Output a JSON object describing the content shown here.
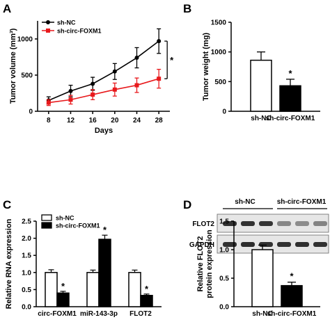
{
  "colors": {
    "series1": "#000000",
    "series2": "#e8191c",
    "bar_open": "#ffffff",
    "bar_filled": "#000000"
  },
  "chart_data": [
    {
      "panel": "A",
      "type": "line",
      "xlabel": "Days",
      "ylabel": "Tumor volume (mm³)",
      "x": [
        8,
        12,
        16,
        20,
        24,
        28
      ],
      "xlim": [
        6,
        30
      ],
      "ylim": [
        0,
        1250
      ],
      "yticks": [
        0,
        500,
        1000
      ],
      "series": [
        {
          "name": "sh-NC",
          "values": [
            150,
            280,
            380,
            550,
            740,
            970
          ],
          "errors": [
            50,
            80,
            90,
            110,
            140,
            170
          ],
          "color": "#000000",
          "marker": "circle"
        },
        {
          "name": "sh-circ-FOXM1",
          "values": [
            120,
            160,
            230,
            300,
            360,
            450
          ],
          "errors": [
            40,
            60,
            70,
            90,
            100,
            130
          ],
          "color": "#e8191c",
          "marker": "square"
        }
      ],
      "annotation": "*",
      "legend": "top-left"
    },
    {
      "panel": "B",
      "type": "bar",
      "ylabel": "Tumor weight (mg)",
      "categories": [
        "sh-NC",
        "sh-circ-FOXM1"
      ],
      "values": [
        860,
        430
      ],
      "errors": [
        140,
        110
      ],
      "ylim": [
        0,
        1500
      ],
      "yticks": [
        0,
        500,
        1000,
        1500
      ],
      "annotation": "*"
    },
    {
      "panel": "C",
      "type": "bar",
      "ylabel": "Relative RNA expression",
      "categories": [
        "circ-FOXM1",
        "miR-143-3p",
        "FLOT2"
      ],
      "series": [
        {
          "name": "sh-NC",
          "values": [
            1.0,
            1.0,
            1.0
          ],
          "errors": [
            0.08,
            0.07,
            0.07
          ]
        },
        {
          "name": "sh-circ-FOXM1",
          "values": [
            0.4,
            1.97,
            0.33
          ],
          "errors": [
            0.05,
            0.12,
            0.04
          ]
        }
      ],
      "significance": [
        "*",
        "*",
        "*"
      ],
      "ylim": [
        0,
        2.5
      ],
      "yticks": [
        0.0,
        0.5,
        1.0,
        1.5,
        2.0,
        2.5
      ],
      "legend": "top-left"
    },
    {
      "panel": "D",
      "type": "bar",
      "ylabel": "Relative FLOT2 protein expression",
      "categories": [
        "sh-NC",
        "sh-circ-FOXM1"
      ],
      "values": [
        1.0,
        0.37
      ],
      "errors": [
        0.08,
        0.06
      ],
      "ylim": [
        0,
        1.5
      ],
      "yticks": [
        0.0,
        0.5,
        1.0,
        1.5
      ],
      "annotation": "*",
      "blot": {
        "groups": [
          "sh-NC",
          "sh-circ-FOXM1"
        ],
        "rows": [
          {
            "label": "FLOT2",
            "intensities": [
              0.9,
              0.9,
              0.88,
              0.45,
              0.42,
              0.47
            ]
          },
          {
            "label": "GAPDH",
            "intensities": [
              0.9,
              0.92,
              0.9,
              0.9,
              0.91,
              0.9
            ]
          }
        ]
      }
    }
  ]
}
